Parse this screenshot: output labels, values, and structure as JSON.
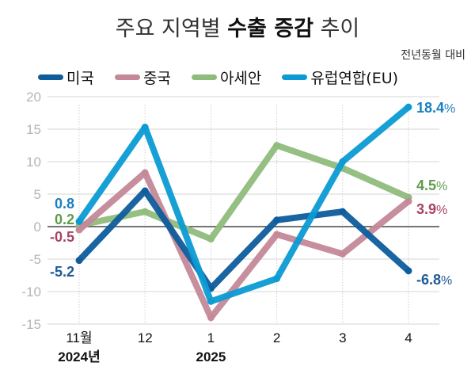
{
  "title": {
    "light_prefix": "주요 지역별 ",
    "bold": "수출 증감",
    "light_suffix": " 추이"
  },
  "subnote": "전년동월 대비",
  "chart_data": {
    "type": "line",
    "title": "주요 지역별 수출 증감 추이",
    "subtitle": "전년동월 대비",
    "xlabel": "",
    "ylabel": "",
    "unit": "%",
    "categories": [
      "11월",
      "12",
      "1",
      "2",
      "3",
      "4"
    ],
    "year_labels": [
      {
        "category_index": 0,
        "label": "2024년"
      },
      {
        "category_index": 2,
        "label": "2025"
      }
    ],
    "yticks": [
      20,
      15,
      10,
      5,
      0,
      -5,
      -10,
      -15
    ],
    "ylim": [
      -15,
      20
    ],
    "grid": true,
    "legend_position": "top",
    "series": [
      {
        "name": "미국",
        "color": "#0d5c9c",
        "label_color": "#1e5a96",
        "values": [
          -5.2,
          5.5,
          -9.5,
          1.0,
          2.3,
          -6.8
        ],
        "start_label": "-5.2",
        "end_label": "-6.8"
      },
      {
        "name": "중국",
        "color": "#c48898",
        "label_color": "#a84462",
        "values": [
          -0.5,
          8.3,
          -14.0,
          -1.2,
          -4.2,
          3.9
        ],
        "start_label": "-0.5",
        "end_label": "3.9"
      },
      {
        "name": "아세안",
        "color": "#8fbc7c",
        "label_color": "#5f9c4c",
        "values": [
          0.2,
          2.3,
          -1.9,
          12.5,
          9.0,
          4.5
        ],
        "start_label": "0.2",
        "end_label": "4.5"
      },
      {
        "name": "유럽연합(EU)",
        "color": "#0b9bd3",
        "label_color": "#1a7fbf",
        "values": [
          0.8,
          15.3,
          -11.5,
          -8.0,
          10.0,
          18.4
        ],
        "start_label": "0.8",
        "end_label": "18.4"
      }
    ]
  }
}
